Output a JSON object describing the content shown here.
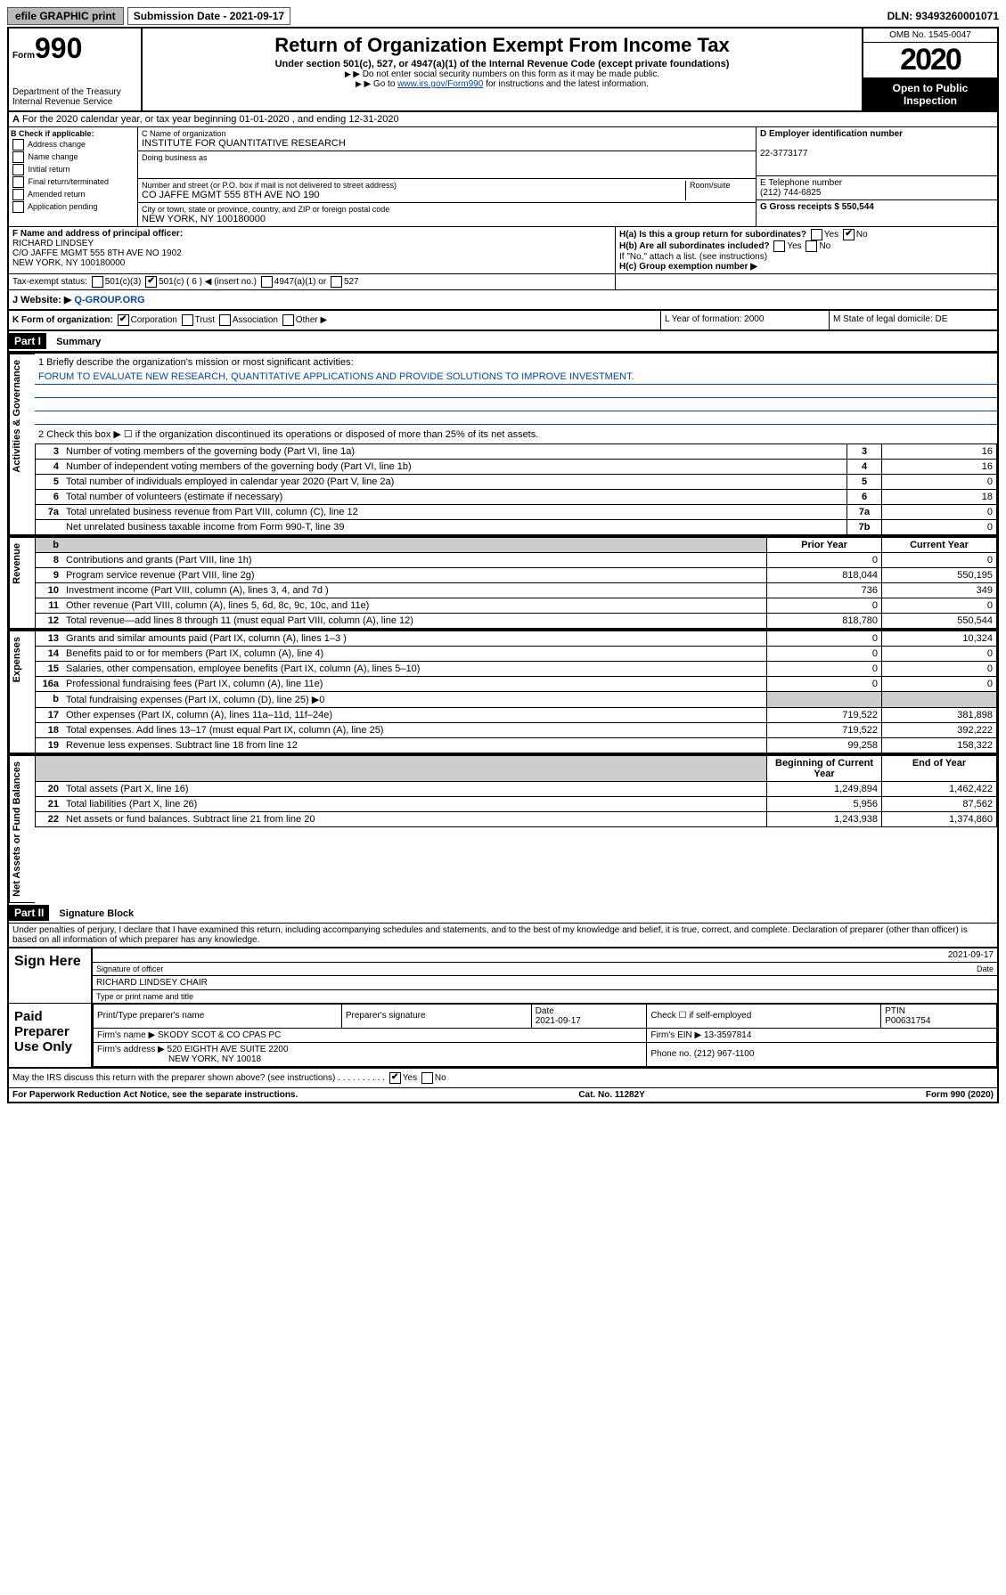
{
  "topbar": {
    "efile": "efile GRAPHIC print",
    "subdate_label": "Submission Date - 2021-09-17",
    "dln": "DLN: 93493260001071"
  },
  "header": {
    "form_word": "Form",
    "form_no": "990",
    "dept": "Department of the Treasury\nInternal Revenue Service",
    "title": "Return of Organization Exempt From Income Tax",
    "subtitle": "Under section 501(c), 527, or 4947(a)(1) of the Internal Revenue Code (except private foundations)",
    "note1": "Do not enter social security numbers on this form as it may be made public.",
    "note2_pre": "Go to ",
    "note2_link": "www.irs.gov/Form990",
    "note2_post": " for instructions and the latest information.",
    "omb": "OMB No. 1545-0047",
    "year": "2020",
    "inspect": "Open to Public Inspection"
  },
  "row_a": "For the 2020 calendar year, or tax year beginning 01-01-2020    , and ending 12-31-2020",
  "col_b": {
    "title": "B Check if applicable:",
    "opts": [
      "Address change",
      "Name change",
      "Initial return",
      "Final return/terminated",
      "Amended return",
      "Application pending"
    ]
  },
  "col_c": {
    "name_lbl": "C Name of organization",
    "name": "INSTITUTE FOR QUANTITATIVE RESEARCH",
    "dba_lbl": "Doing business as",
    "dba": "",
    "addr_lbl": "Number and street (or P.O. box if mail is not delivered to street address)",
    "room_lbl": "Room/suite",
    "addr": "CO JAFFE MGMT 555 8TH AVE NO 190",
    "city_lbl": "City or town, state or province, country, and ZIP or foreign postal code",
    "city": "NEW YORK, NY  100180000"
  },
  "col_d": {
    "ein_lbl": "D Employer identification number",
    "ein": "22-3773177"
  },
  "col_e": {
    "tel_lbl": "E Telephone number",
    "tel": "(212) 744-6825"
  },
  "col_g": {
    "gross_lbl": "G Gross receipts $ 550,544"
  },
  "row_f": {
    "lbl": "F  Name and address of principal officer:",
    "name": "RICHARD LINDSEY",
    "addr1": "C/O JAFFE MGMT 555 8TH AVE NO 1902",
    "addr2": "NEW YORK, NY 100180000"
  },
  "row_h": {
    "ha": "H(a)  Is this a group return for subordinates?",
    "hb": "H(b)  Are all subordinates included?",
    "hb_note": "If \"No,\" attach a list. (see instructions)",
    "hc": "H(c)  Group exemption number ▶",
    "yes": "Yes",
    "no": "No"
  },
  "tax_status": {
    "lbl": "Tax-exempt status:",
    "c3": "501(c)(3)",
    "c": "501(c) ( 6 ) ◀ (insert no.)",
    "a1": "4947(a)(1) or",
    "s527": "527"
  },
  "website": {
    "lbl": "J Website: ▶",
    "val": "Q-GROUP.ORG"
  },
  "k": {
    "lbl": "K Form of organization:",
    "corp": "Corporation",
    "trust": "Trust",
    "assoc": "Association",
    "other": "Other ▶"
  },
  "l": {
    "lbl": "L Year of formation: 2000"
  },
  "m": {
    "lbl": "M State of legal domicile: DE"
  },
  "part1": {
    "hdr": "Part I",
    "title": "Summary"
  },
  "mission": {
    "q": "1  Briefly describe the organization's mission or most significant activities:",
    "text": "FORUM TO EVALUATE NEW RESEARCH, QUANTITATIVE APPLICATIONS AND PROVIDE SOLUTIONS TO IMPROVE INVESTMENT."
  },
  "governance": {
    "tab": "Activities & Governance",
    "line2": "2   Check this box ▶ ☐  if the organization discontinued its operations or disposed of more than 25% of its net assets.",
    "rows": [
      {
        "n": "3",
        "d": "Number of voting members of the governing body (Part VI, line 1a)",
        "a": "3",
        "v": "16"
      },
      {
        "n": "4",
        "d": "Number of independent voting members of the governing body (Part VI, line 1b)",
        "a": "4",
        "v": "16"
      },
      {
        "n": "5",
        "d": "Total number of individuals employed in calendar year 2020 (Part V, line 2a)",
        "a": "5",
        "v": "0"
      },
      {
        "n": "6",
        "d": "Total number of volunteers (estimate if necessary)",
        "a": "6",
        "v": "18"
      },
      {
        "n": "7a",
        "d": "Total unrelated business revenue from Part VIII, column (C), line 12",
        "a": "7a",
        "v": "0"
      },
      {
        "n": "",
        "d": "Net unrelated business taxable income from Form 990-T, line 39",
        "a": "7b",
        "v": "0"
      }
    ]
  },
  "revenue": {
    "tab": "Revenue",
    "hdr_prior": "Prior Year",
    "hdr_curr": "Current Year",
    "rows": [
      {
        "n": "8",
        "d": "Contributions and grants (Part VIII, line 1h)",
        "p": "0",
        "c": "0"
      },
      {
        "n": "9",
        "d": "Program service revenue (Part VIII, line 2g)",
        "p": "818,044",
        "c": "550,195"
      },
      {
        "n": "10",
        "d": "Investment income (Part VIII, column (A), lines 3, 4, and 7d )",
        "p": "736",
        "c": "349"
      },
      {
        "n": "11",
        "d": "Other revenue (Part VIII, column (A), lines 5, 6d, 8c, 9c, 10c, and 11e)",
        "p": "0",
        "c": "0"
      },
      {
        "n": "12",
        "d": "Total revenue—add lines 8 through 11 (must equal Part VIII, column (A), line 12)",
        "p": "818,780",
        "c": "550,544"
      }
    ]
  },
  "expenses": {
    "tab": "Expenses",
    "rows": [
      {
        "n": "13",
        "d": "Grants and similar amounts paid (Part IX, column (A), lines 1–3 )",
        "p": "0",
        "c": "10,324"
      },
      {
        "n": "14",
        "d": "Benefits paid to or for members (Part IX, column (A), line 4)",
        "p": "0",
        "c": "0"
      },
      {
        "n": "15",
        "d": "Salaries, other compensation, employee benefits (Part IX, column (A), lines 5–10)",
        "p": "0",
        "c": "0"
      },
      {
        "n": "16a",
        "d": "Professional fundraising fees (Part IX, column (A), line 11e)",
        "p": "0",
        "c": "0"
      },
      {
        "n": "b",
        "d": "Total fundraising expenses (Part IX, column (D), line 25) ▶0",
        "p": "",
        "c": ""
      },
      {
        "n": "17",
        "d": "Other expenses (Part IX, column (A), lines 11a–11d, 11f–24e)",
        "p": "719,522",
        "c": "381,898"
      },
      {
        "n": "18",
        "d": "Total expenses. Add lines 13–17 (must equal Part IX, column (A), line 25)",
        "p": "719,522",
        "c": "392,222"
      },
      {
        "n": "19",
        "d": "Revenue less expenses. Subtract line 18 from line 12",
        "p": "99,258",
        "c": "158,322"
      }
    ]
  },
  "netassets": {
    "tab": "Net Assets or Fund Balances",
    "hdr_begin": "Beginning of Current Year",
    "hdr_end": "End of Year",
    "rows": [
      {
        "n": "20",
        "d": "Total assets (Part X, line 16)",
        "p": "1,249,894",
        "c": "1,462,422"
      },
      {
        "n": "21",
        "d": "Total liabilities (Part X, line 26)",
        "p": "5,956",
        "c": "87,562"
      },
      {
        "n": "22",
        "d": "Net assets or fund balances. Subtract line 21 from line 20",
        "p": "1,243,938",
        "c": "1,374,860"
      }
    ]
  },
  "part2": {
    "hdr": "Part II",
    "title": "Signature Block"
  },
  "perjury": "Under penalties of perjury, I declare that I have examined this return, including accompanying schedules and statements, and to the best of my knowledge and belief, it is true, correct, and complete. Declaration of preparer (other than officer) is based on all information of which preparer has any knowledge.",
  "sign": {
    "here": "Sign Here",
    "sig_lbl": "Signature of officer",
    "date": "2021-09-17",
    "date_lbl": "Date",
    "name": "RICHARD LINDSEY CHAIR",
    "name_lbl": "Type or print name and title"
  },
  "prep": {
    "label": "Paid Preparer Use Only",
    "h1": "Print/Type preparer's name",
    "h2": "Preparer's signature",
    "h3": "Date",
    "h4": "Check ☐ if self-employed",
    "h5": "PTIN",
    "date": "2021-09-17",
    "ptin": "P00631754",
    "firm_lbl": "Firm's name    ▶",
    "firm": "SKODY SCOT & CO CPAS PC",
    "ein_lbl": "Firm's EIN ▶",
    "ein": "13-3597814",
    "addr_lbl": "Firm's address ▶",
    "addr1": "520 EIGHTH AVE SUITE 2200",
    "addr2": "NEW YORK, NY  10018",
    "phone_lbl": "Phone no. (212) 967-1100"
  },
  "discuss": {
    "q": "May the IRS discuss this return with the preparer shown above? (see instructions)",
    "yes": "Yes",
    "no": "No"
  },
  "footer": {
    "l": "For Paperwork Reduction Act Notice, see the separate instructions.",
    "m": "Cat. No. 11282Y",
    "r": "Form 990 (2020)"
  }
}
